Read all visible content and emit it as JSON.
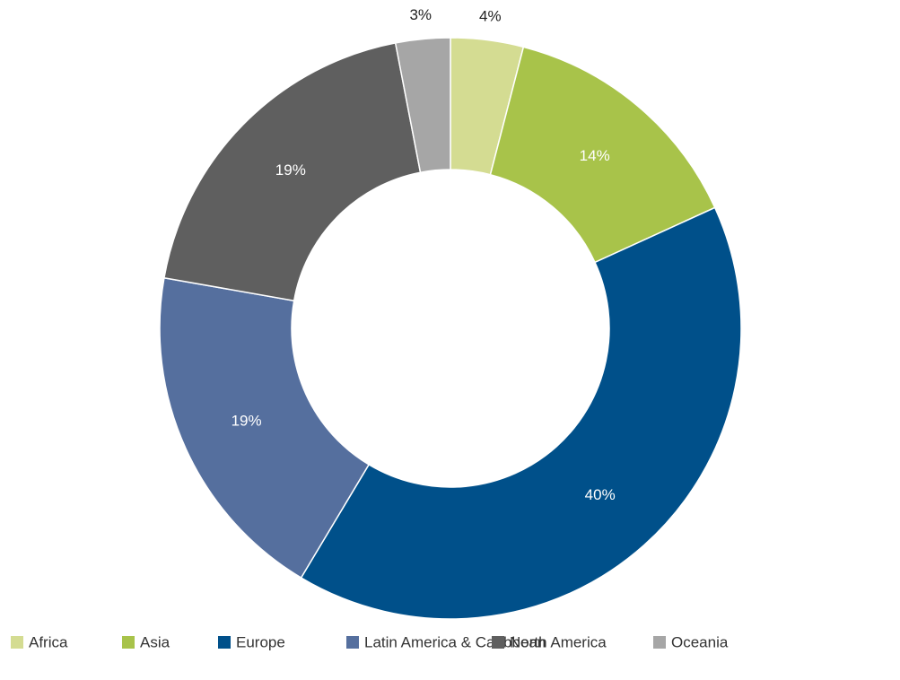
{
  "chart_data": {
    "type": "donut",
    "categories": [
      "Africa",
      "Asia",
      "Europe",
      "Latin America & Caribbean",
      "North America",
      "Oceania"
    ],
    "values": [
      4,
      14,
      40,
      19,
      19,
      3
    ],
    "value_labels": [
      "4%",
      "14%",
      "40%",
      "19%",
      "19%",
      "3%"
    ],
    "colors": [
      "#d4dc92",
      "#a8c34a",
      "#00508a",
      "#556f9e",
      "#5f5f5f",
      "#a6a6a6"
    ],
    "legend": "bottom"
  }
}
